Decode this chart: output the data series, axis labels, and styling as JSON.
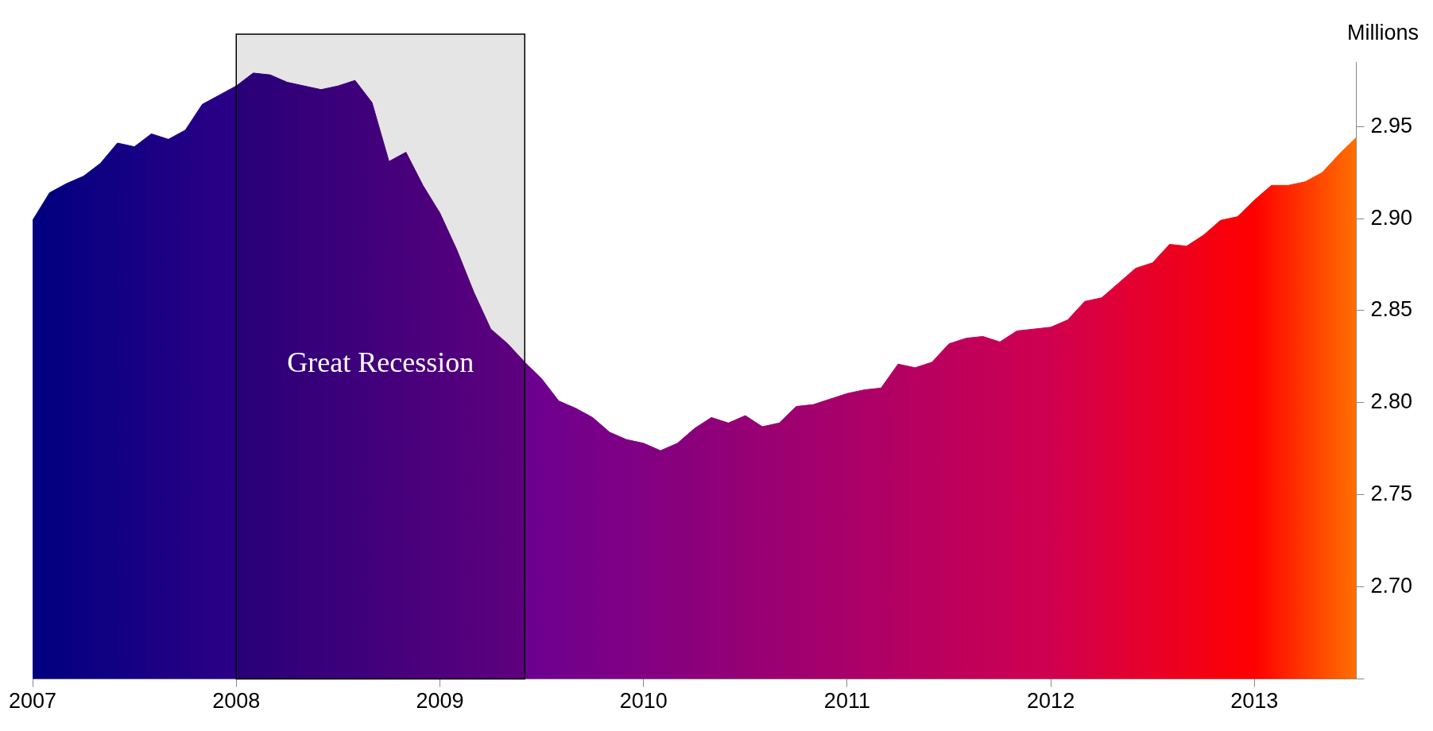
{
  "chart_data": {
    "type": "area",
    "ylabel": "Millions",
    "x": [
      "2007-01",
      "2007-02",
      "2007-03",
      "2007-04",
      "2007-05",
      "2007-06",
      "2007-07",
      "2007-08",
      "2007-09",
      "2007-10",
      "2007-11",
      "2007-12",
      "2008-01",
      "2008-02",
      "2008-03",
      "2008-04",
      "2008-05",
      "2008-06",
      "2008-07",
      "2008-08",
      "2008-09",
      "2008-10",
      "2008-11",
      "2008-12",
      "2009-01",
      "2009-02",
      "2009-03",
      "2009-04",
      "2009-05",
      "2009-06",
      "2009-07",
      "2009-08",
      "2009-09",
      "2009-10",
      "2009-11",
      "2009-12",
      "2010-01",
      "2010-02",
      "2010-03",
      "2010-04",
      "2010-05",
      "2010-06",
      "2010-07",
      "2010-08",
      "2010-09",
      "2010-10",
      "2010-11",
      "2010-12",
      "2011-01",
      "2011-02",
      "2011-03",
      "2011-04",
      "2011-05",
      "2011-06",
      "2011-07",
      "2011-08",
      "2011-09",
      "2011-10",
      "2011-11",
      "2011-12",
      "2012-01",
      "2012-02",
      "2012-03",
      "2012-04",
      "2012-05",
      "2012-06",
      "2012-07",
      "2012-08",
      "2012-09",
      "2012-10",
      "2012-11",
      "2012-12",
      "2013-01",
      "2013-02",
      "2013-03",
      "2013-04",
      "2013-05",
      "2013-06",
      "2013-07"
    ],
    "values": [
      2.899,
      2.914,
      2.919,
      2.923,
      2.93,
      2.941,
      2.939,
      2.946,
      2.943,
      2.948,
      2.962,
      2.967,
      2.972,
      2.979,
      2.978,
      2.974,
      2.972,
      2.97,
      2.972,
      2.975,
      2.963,
      2.931,
      2.936,
      2.918,
      2.903,
      2.883,
      2.86,
      2.84,
      2.832,
      2.822,
      2.813,
      2.801,
      2.797,
      2.792,
      2.784,
      2.78,
      2.778,
      2.774,
      2.778,
      2.786,
      2.792,
      2.789,
      2.793,
      2.787,
      2.789,
      2.798,
      2.799,
      2.802,
      2.805,
      2.807,
      2.808,
      2.821,
      2.819,
      2.822,
      2.832,
      2.835,
      2.836,
      2.833,
      2.839,
      2.84,
      2.841,
      2.845,
      2.855,
      2.857,
      2.865,
      2.873,
      2.876,
      2.886,
      2.885,
      2.891,
      2.899,
      2.901,
      2.91,
      2.918,
      2.918,
      2.92,
      2.925,
      2.935,
      2.944
    ],
    "colors": [
      "#000080",
      "#040080",
      "#070081",
      "#0b0081",
      "#0f0082",
      "#120082",
      "#160083",
      "#1a0083",
      "#1d0084",
      "#210084",
      "#250085",
      "#280085",
      "#2c0086",
      "#300086",
      "#330087",
      "#370087",
      "#3b0087",
      "#3e0088",
      "#420088",
      "#460089",
      "#490089",
      "#4d008a",
      "#51008a",
      "#54008b",
      "#58008b",
      "#5c008c",
      "#5f008c",
      "#63008d",
      "#67008d",
      "#6a008e",
      "#6e008e",
      "#71008c",
      "#75008a",
      "#780088",
      "#7b0086",
      "#7e0084",
      "#820082",
      "#850080",
      "#88007d",
      "#8b007b",
      "#8f0079",
      "#920077",
      "#950075",
      "#990073",
      "#9c0071",
      "#9f006f",
      "#a2006d",
      "#a6006b",
      "#a90069",
      "#ac0067",
      "#af0065",
      "#b30063",
      "#b60060",
      "#b9005e",
      "#bc005c",
      "#c0005a",
      "#c30058",
      "#c60056",
      "#ca0054",
      "#cd0052",
      "#d00050",
      "#d40049",
      "#d80043",
      "#dc003c",
      "#e00035",
      "#e4002f",
      "#e70028",
      "#eb0021",
      "#ef001b",
      "#f30014",
      "#f7000d",
      "#fb0007",
      "#ff0000",
      "#ff1300",
      "#ff2500",
      "#ff3800",
      "#ff4b00",
      "#ff5d00",
      "#ff7000"
    ],
    "xlim": [
      "2007-01",
      "2013-07"
    ],
    "xticks": [
      {
        "value": "2007",
        "label": "2007"
      },
      {
        "value": "2008",
        "label": "2008"
      },
      {
        "value": "2009",
        "label": "2009"
      },
      {
        "value": "2010",
        "label": "2010"
      },
      {
        "value": "2011",
        "label": "2011"
      },
      {
        "value": "2012",
        "label": "2012"
      },
      {
        "value": "2013",
        "label": "2013"
      }
    ],
    "ylim": [
      2.65,
      2.985
    ],
    "yticks": [
      {
        "value": 2.65,
        "label": null
      },
      {
        "value": 2.7,
        "label": "2.70"
      },
      2.75,
      {
        "value": 2.8,
        "label": "2.80"
      },
      2.85,
      {
        "value": 2.9,
        "label": "2.90"
      },
      2.95
    ],
    "bands": [
      {
        "axis": "x",
        "from": "2008-01",
        "to": "2009-06",
        "label": "Great Recession",
        "color": "#000000"
      }
    ],
    "grid": false,
    "legend": false
  }
}
